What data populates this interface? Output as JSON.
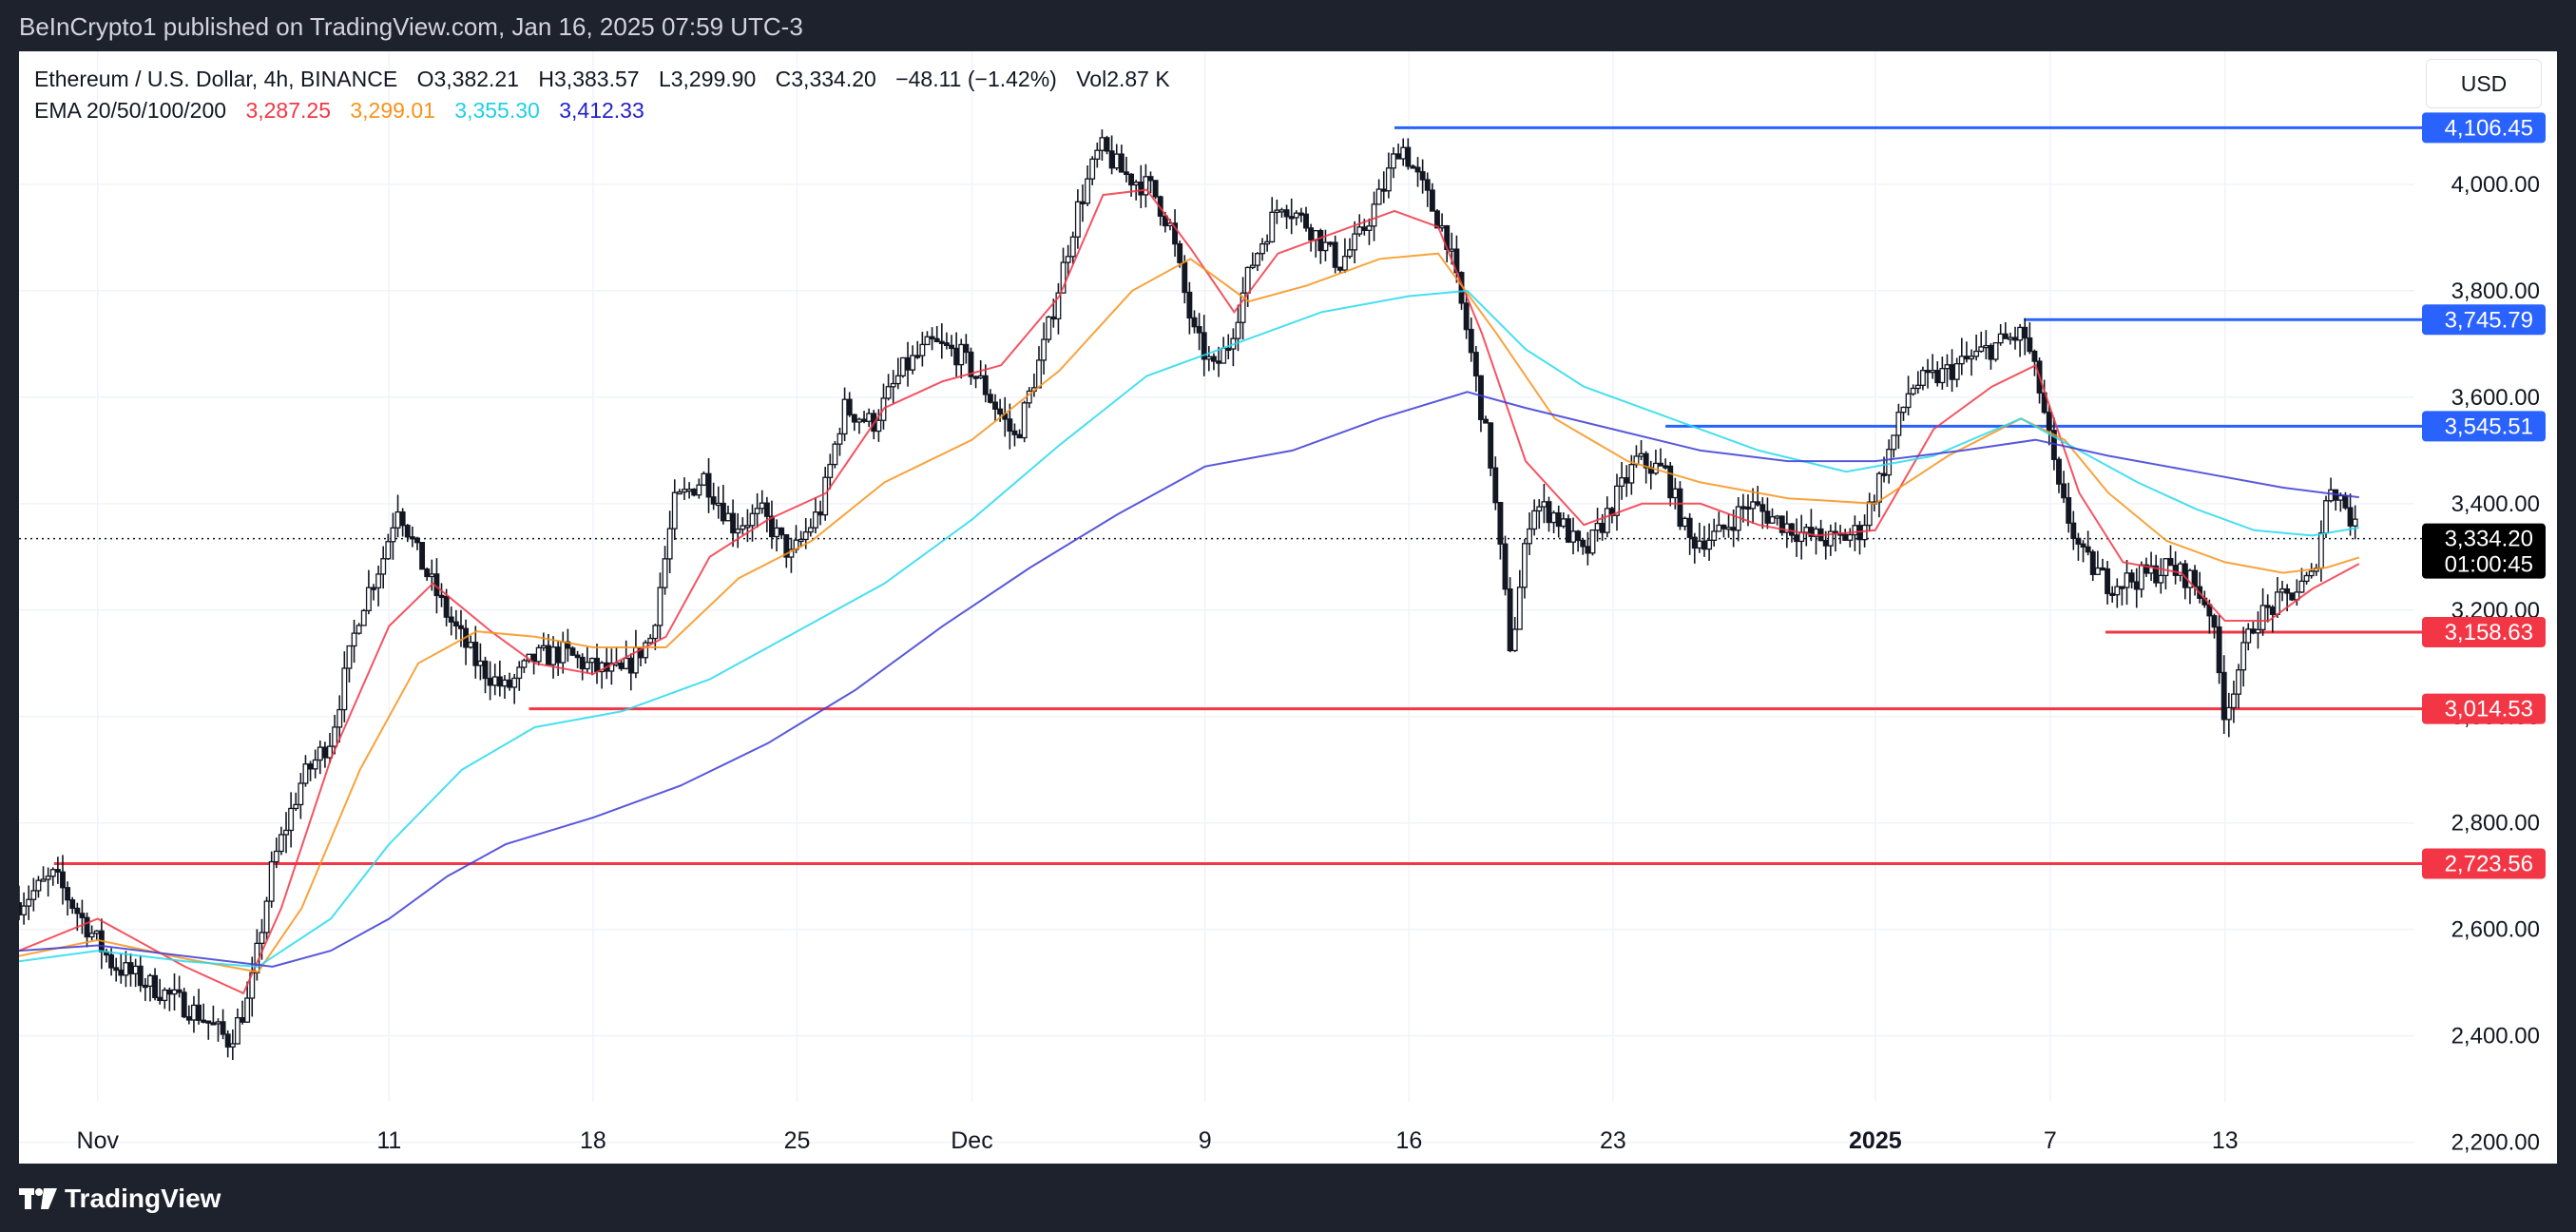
{
  "header": {
    "publisher_line": "BeInCrypto1 published on TradingView.com, Jan 16, 2025 07:59 UTC-3"
  },
  "legend": {
    "symbol": "Ethereum / U.S. Dollar, 4h, BINANCE",
    "open": "O3,382.21",
    "high": "H3,383.57",
    "low": "L3,299.90",
    "close": "C3,334.20",
    "change": "−48.11 (−1.42%)",
    "volume": "Vol2.87 K",
    "ema_label": "EMA 20/50/100/200",
    "ema20": "3,287.25",
    "ema50": "3,299.01",
    "ema100": "3,355.30",
    "ema200": "3,412.33"
  },
  "currency_button": "USD",
  "footer": {
    "brand": "TradingView"
  },
  "colors": {
    "ema20": "#f23645",
    "ema50": "#f7931a",
    "ema100": "#26d9ef",
    "ema200": "#3b3bd6",
    "support": "#f23645",
    "resistance": "#2962ff",
    "candle": "#131722"
  },
  "chart_data": {
    "type": "candlestick",
    "symbol": "ETHUSD",
    "timeframe": "4h",
    "ylim": [
      2160,
      4250
    ],
    "y_ticks": [
      2200,
      2400,
      2600,
      2800,
      3000,
      3200,
      3400,
      3600,
      3800,
      4000
    ],
    "y_tick_labels": [
      "2,200.00",
      "2,400.00",
      "2,600.00",
      "2,800.00",
      "3,000.00",
      "3,200.00",
      "3,400.00",
      "3,600.00",
      "3,800.00",
      "4,000.00"
    ],
    "x_ticks": [
      {
        "label": "Nov",
        "day": 0
      },
      {
        "label": "11",
        "day": 10
      },
      {
        "label": "18",
        "day": 17
      },
      {
        "label": "25",
        "day": 24
      },
      {
        "label": "Dec",
        "day": 30
      },
      {
        "label": "9",
        "day": 38
      },
      {
        "label": "16",
        "day": 45
      },
      {
        "label": "23",
        "day": 52
      },
      {
        "label": "2025",
        "day": 61
      },
      {
        "label": "7",
        "day": 67
      },
      {
        "label": "13",
        "day": 73
      }
    ],
    "x_range_days": [
      -2.7,
      79.5
    ],
    "price_path": [
      [
        -2.7,
        2650
      ],
      [
        -1.5,
        2700
      ],
      [
        -0.6,
        2625
      ],
      [
        0.5,
        2535
      ],
      [
        2,
        2490
      ],
      [
        3.5,
        2440
      ],
      [
        4.5,
        2390
      ],
      [
        5.2,
        2470
      ],
      [
        6,
        2720
      ],
      [
        7,
        2880
      ],
      [
        8,
        2960
      ],
      [
        9,
        3200
      ],
      [
        9.8,
        3300
      ],
      [
        10.3,
        3400
      ],
      [
        11,
        3300
      ],
      [
        12,
        3190
      ],
      [
        13,
        3100
      ],
      [
        14,
        3050
      ],
      [
        15,
        3110
      ],
      [
        16,
        3120
      ],
      [
        17,
        3090
      ],
      [
        18,
        3080
      ],
      [
        19,
        3150
      ],
      [
        19.8,
        3400
      ],
      [
        20.8,
        3450
      ],
      [
        21.8,
        3360
      ],
      [
        22.8,
        3380
      ],
      [
        23.8,
        3300
      ],
      [
        24.8,
        3390
      ],
      [
        25.6,
        3580
      ],
      [
        26.6,
        3550
      ],
      [
        27.6,
        3650
      ],
      [
        28.6,
        3700
      ],
      [
        29.6,
        3680
      ],
      [
        30.4,
        3620
      ],
      [
        31.5,
        3520
      ],
      [
        32.5,
        3700
      ],
      [
        33.6,
        3950
      ],
      [
        34.4,
        4070
      ],
      [
        35.2,
        4020
      ],
      [
        36.2,
        3990
      ],
      [
        36.8,
        3920
      ],
      [
        37.6,
        3720
      ],
      [
        38.3,
        3650
      ],
      [
        38.8,
        3700
      ],
      [
        39.6,
        3850
      ],
      [
        40.6,
        3970
      ],
      [
        41.6,
        3920
      ],
      [
        42.6,
        3850
      ],
      [
        43.3,
        3900
      ],
      [
        44.1,
        3990
      ],
      [
        44.7,
        4080
      ],
      [
        45.4,
        4000
      ],
      [
        46.3,
        3900
      ],
      [
        47,
        3720
      ],
      [
        47.8,
        3480
      ],
      [
        48.5,
        3120
      ],
      [
        49.2,
        3400
      ],
      [
        50,
        3380
      ],
      [
        51,
        3300
      ],
      [
        52,
        3400
      ],
      [
        52.8,
        3480
      ],
      [
        53.8,
        3460
      ],
      [
        54.6,
        3330
      ],
      [
        55.6,
        3340
      ],
      [
        56.6,
        3400
      ],
      [
        57.6,
        3370
      ],
      [
        58.6,
        3340
      ],
      [
        59.6,
        3330
      ],
      [
        60.5,
        3350
      ],
      [
        61.3,
        3470
      ],
      [
        62.2,
        3620
      ],
      [
        63.2,
        3640
      ],
      [
        64.2,
        3670
      ],
      [
        65.2,
        3700
      ],
      [
        66.1,
        3720
      ],
      [
        66.7,
        3600
      ],
      [
        67.3,
        3420
      ],
      [
        68.1,
        3300
      ],
      [
        69,
        3250
      ],
      [
        70,
        3260
      ],
      [
        71,
        3280
      ],
      [
        71.8,
        3260
      ],
      [
        72.5,
        3200
      ],
      [
        73,
        3000
      ],
      [
        73.4,
        3080
      ],
      [
        74,
        3180
      ],
      [
        75,
        3220
      ],
      [
        76,
        3260
      ],
      [
        76.6,
        3440
      ],
      [
        77.1,
        3400
      ],
      [
        77.6,
        3334
      ]
    ],
    "emas": [
      {
        "name": "EMA 20",
        "value": 3287.25,
        "points": [
          [
            -2.7,
            2560
          ],
          [
            0,
            2620
          ],
          [
            3,
            2530
          ],
          [
            5,
            2480
          ],
          [
            6.3,
            2640
          ],
          [
            8,
            2920
          ],
          [
            10,
            3170
          ],
          [
            11.5,
            3250
          ],
          [
            13.5,
            3160
          ],
          [
            15,
            3100
          ],
          [
            17,
            3080
          ],
          [
            19.5,
            3150
          ],
          [
            21,
            3300
          ],
          [
            23,
            3370
          ],
          [
            25,
            3420
          ],
          [
            27,
            3580
          ],
          [
            29,
            3630
          ],
          [
            31,
            3660
          ],
          [
            33,
            3790
          ],
          [
            34.5,
            3980
          ],
          [
            36,
            3990
          ],
          [
            37.5,
            3880
          ],
          [
            39,
            3760
          ],
          [
            40.5,
            3870
          ],
          [
            42.5,
            3910
          ],
          [
            44.5,
            3950
          ],
          [
            46,
            3920
          ],
          [
            47.5,
            3720
          ],
          [
            49,
            3480
          ],
          [
            51,
            3360
          ],
          [
            53,
            3400
          ],
          [
            55,
            3400
          ],
          [
            57,
            3360
          ],
          [
            59,
            3340
          ],
          [
            61,
            3350
          ],
          [
            63,
            3540
          ],
          [
            65,
            3620
          ],
          [
            66.5,
            3660
          ],
          [
            68,
            3420
          ],
          [
            69.5,
            3290
          ],
          [
            71.5,
            3270
          ],
          [
            73,
            3180
          ],
          [
            74.5,
            3180
          ],
          [
            76,
            3240
          ],
          [
            77.6,
            3287
          ]
        ]
      },
      {
        "name": "EMA 50",
        "value": 3299.01,
        "points": [
          [
            -2.7,
            2550
          ],
          [
            0,
            2580
          ],
          [
            3,
            2545
          ],
          [
            5.5,
            2520
          ],
          [
            7,
            2640
          ],
          [
            9,
            2900
          ],
          [
            11,
            3100
          ],
          [
            13,
            3160
          ],
          [
            15,
            3150
          ],
          [
            17,
            3130
          ],
          [
            19.5,
            3130
          ],
          [
            22,
            3260
          ],
          [
            24.5,
            3330
          ],
          [
            27,
            3440
          ],
          [
            30,
            3520
          ],
          [
            33,
            3650
          ],
          [
            35.5,
            3800
          ],
          [
            37.5,
            3860
          ],
          [
            39.5,
            3780
          ],
          [
            41.5,
            3810
          ],
          [
            44,
            3860
          ],
          [
            46,
            3870
          ],
          [
            48,
            3720
          ],
          [
            50,
            3560
          ],
          [
            52.5,
            3480
          ],
          [
            55,
            3440
          ],
          [
            58,
            3410
          ],
          [
            61,
            3400
          ],
          [
            63.5,
            3490
          ],
          [
            66,
            3560
          ],
          [
            67.5,
            3520
          ],
          [
            69,
            3420
          ],
          [
            71,
            3330
          ],
          [
            73,
            3290
          ],
          [
            75,
            3270
          ],
          [
            76.5,
            3280
          ],
          [
            77.6,
            3299
          ]
        ]
      },
      {
        "name": "EMA 100",
        "value": 3355.3,
        "points": [
          [
            -2.7,
            2540
          ],
          [
            0,
            2560
          ],
          [
            3,
            2540
          ],
          [
            5.5,
            2530
          ],
          [
            8,
            2620
          ],
          [
            10,
            2760
          ],
          [
            12.5,
            2900
          ],
          [
            15,
            2980
          ],
          [
            18,
            3010
          ],
          [
            21,
            3070
          ],
          [
            24,
            3160
          ],
          [
            27,
            3250
          ],
          [
            30,
            3370
          ],
          [
            33,
            3510
          ],
          [
            36,
            3640
          ],
          [
            39,
            3700
          ],
          [
            42,
            3760
          ],
          [
            45,
            3790
          ],
          [
            47,
            3800
          ],
          [
            49,
            3690
          ],
          [
            51,
            3620
          ],
          [
            54,
            3560
          ],
          [
            57,
            3500
          ],
          [
            60,
            3460
          ],
          [
            63,
            3490
          ],
          [
            66,
            3560
          ],
          [
            68,
            3500
          ],
          [
            70,
            3440
          ],
          [
            72,
            3390
          ],
          [
            74,
            3350
          ],
          [
            76,
            3340
          ],
          [
            77.6,
            3355
          ]
        ]
      },
      {
        "name": "EMA 200",
        "value": 3412.33,
        "points": [
          [
            -2.7,
            2560
          ],
          [
            0,
            2570
          ],
          [
            3,
            2550
          ],
          [
            6,
            2530
          ],
          [
            8,
            2560
          ],
          [
            10,
            2620
          ],
          [
            12,
            2700
          ],
          [
            14,
            2760
          ],
          [
            17,
            2810
          ],
          [
            20,
            2870
          ],
          [
            23,
            2950
          ],
          [
            26,
            3050
          ],
          [
            29,
            3170
          ],
          [
            32,
            3280
          ],
          [
            35,
            3380
          ],
          [
            38,
            3470
          ],
          [
            41,
            3500
          ],
          [
            44,
            3560
          ],
          [
            47,
            3610
          ],
          [
            49,
            3580
          ],
          [
            52,
            3540
          ],
          [
            55,
            3500
          ],
          [
            58,
            3480
          ],
          [
            61,
            3480
          ],
          [
            64,
            3500
          ],
          [
            66.5,
            3520
          ],
          [
            69,
            3490
          ],
          [
            72,
            3460
          ],
          [
            75,
            3430
          ],
          [
            77.6,
            3412
          ]
        ]
      }
    ],
    "levels": [
      {
        "value": 4106.45,
        "label": "4,106.45",
        "type": "resistance",
        "start_day": 44.5
      },
      {
        "value": 3745.79,
        "label": "3,745.79",
        "type": "resistance",
        "start_day": 66.1
      },
      {
        "value": 3545.51,
        "label": "3,545.51",
        "type": "resistance",
        "start_day": 53.8
      },
      {
        "value": 3158.63,
        "label": "3,158.63",
        "type": "support",
        "start_day": 68.9
      },
      {
        "value": 3014.53,
        "label": "3,014.53",
        "type": "support",
        "start_day": 14.8
      },
      {
        "value": 2723.56,
        "label": "2,723.56",
        "type": "support",
        "start_day": -1.5
      }
    ],
    "last_price": {
      "value": 3334.2,
      "label": "3,334.20",
      "countdown": "01:00:45"
    }
  }
}
